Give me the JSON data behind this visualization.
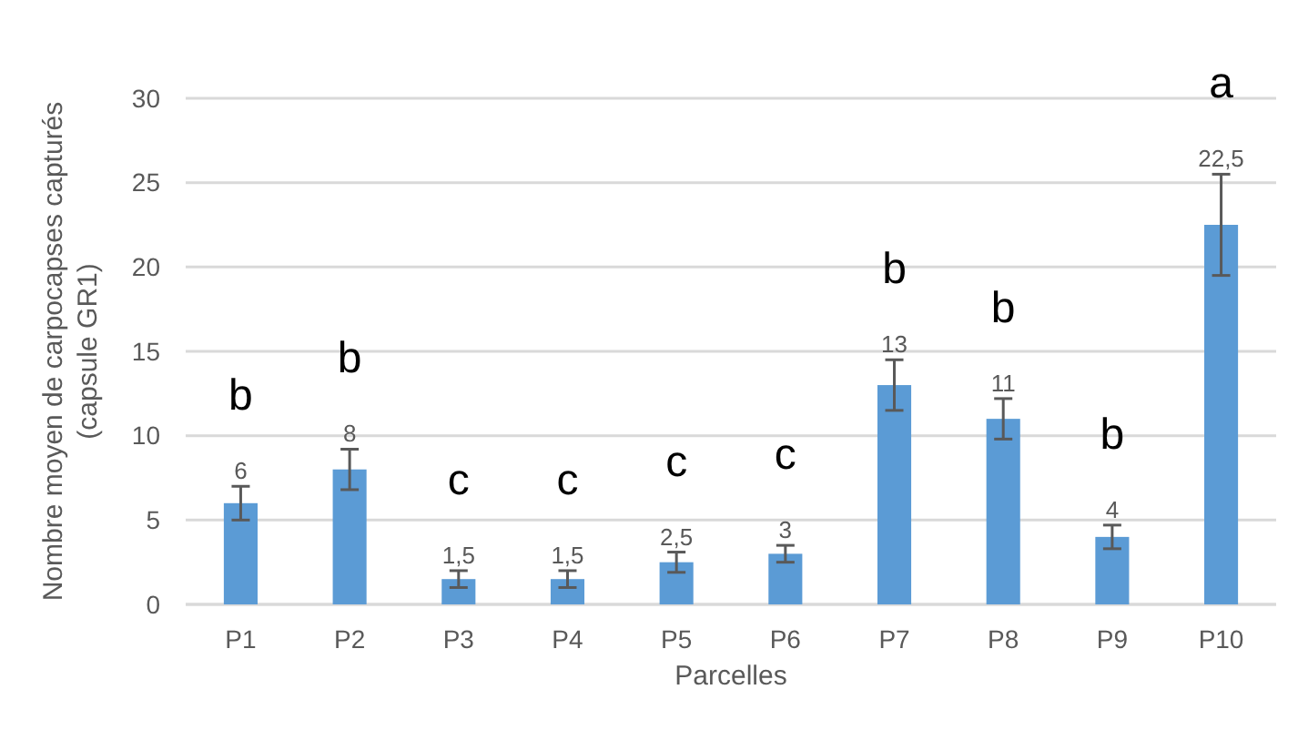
{
  "chart_data": {
    "type": "bar",
    "xlabel": "Parcelles",
    "ylabel": "Nombre moyen de carpocapses capturés\n(capsule GR1)",
    "categories": [
      "P1",
      "P2",
      "P3",
      "P4",
      "P5",
      "P6",
      "P7",
      "P8",
      "P9",
      "P10"
    ],
    "values": [
      6,
      8,
      1.5,
      1.5,
      2.5,
      3,
      13,
      11,
      4,
      22.5
    ],
    "value_labels": [
      "6",
      "8",
      "1,5",
      "1,5",
      "2,5",
      "3",
      "13",
      "11",
      "4",
      "22,5"
    ],
    "errors": [
      1,
      1.2,
      0.5,
      0.5,
      0.6,
      0.5,
      1.5,
      1.2,
      0.7,
      3
    ],
    "color": "#5b9bd5",
    "ylim": [
      0,
      30
    ],
    "yticks": [
      0,
      5,
      10,
      15,
      20,
      25,
      30
    ],
    "grid": "y",
    "annotations": [
      "b",
      "b",
      "c",
      "c",
      "c",
      "c",
      "b",
      "b",
      "b",
      "a"
    ]
  }
}
